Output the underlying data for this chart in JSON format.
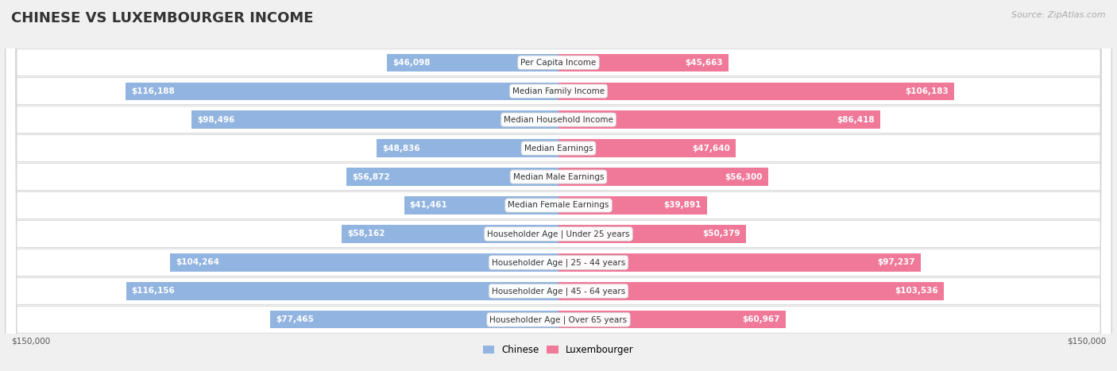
{
  "title": "CHINESE VS LUXEMBOURGER INCOME",
  "source": "Source: ZipAtlas.com",
  "categories": [
    "Per Capita Income",
    "Median Family Income",
    "Median Household Income",
    "Median Earnings",
    "Median Male Earnings",
    "Median Female Earnings",
    "Householder Age | Under 25 years",
    "Householder Age | 25 - 44 years",
    "Householder Age | 45 - 64 years",
    "Householder Age | Over 65 years"
  ],
  "chinese_values": [
    46098,
    116188,
    98496,
    48836,
    56872,
    41461,
    58162,
    104264,
    116156,
    77465
  ],
  "luxembourger_values": [
    45663,
    106183,
    86418,
    47640,
    56300,
    39891,
    50379,
    97237,
    103536,
    60967
  ],
  "chinese_labels": [
    "$46,098",
    "$116,188",
    "$98,496",
    "$48,836",
    "$56,872",
    "$41,461",
    "$58,162",
    "$104,264",
    "$116,156",
    "$77,465"
  ],
  "luxembourger_labels": [
    "$45,663",
    "$106,183",
    "$86,418",
    "$47,640",
    "$56,300",
    "$39,891",
    "$50,379",
    "$97,237",
    "$103,536",
    "$60,967"
  ],
  "max_value": 150000,
  "chinese_color": "#92b4e0",
  "luxembourger_color": "#f07898",
  "bg_color": "#f0f0f0",
  "row_bg": "#ffffff",
  "bar_height": 0.62,
  "figsize": [
    14.06,
    4.67
  ],
  "dpi": 100,
  "title_fontsize": 13,
  "label_fontsize": 7.5,
  "cat_fontsize": 7.5,
  "legend_fontsize": 8.5
}
